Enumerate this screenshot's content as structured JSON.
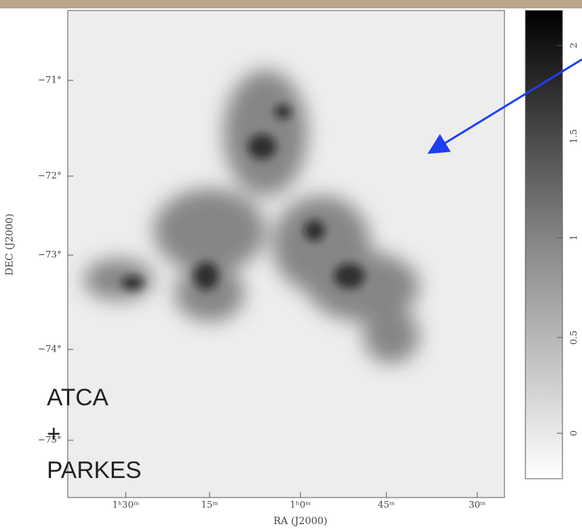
{
  "figure": {
    "y_axis_label": "DEC (J2000)",
    "x_axis_label": "RA (J2000)",
    "y_ticks": [
      "−71°",
      "−72°",
      "−73°",
      "−74°",
      "−75°"
    ],
    "x_ticks": [
      "1ʰ30ᵐ",
      "15ᵐ",
      "1ʰ0ᵐ",
      "45ᵐ",
      "30ᵐ"
    ],
    "colorbar_ticks": [
      "2",
      "1.5",
      "1",
      "0.5",
      "0"
    ]
  },
  "overlay": {
    "lines": [
      "ATCA",
      "+",
      "PARKES"
    ]
  }
}
